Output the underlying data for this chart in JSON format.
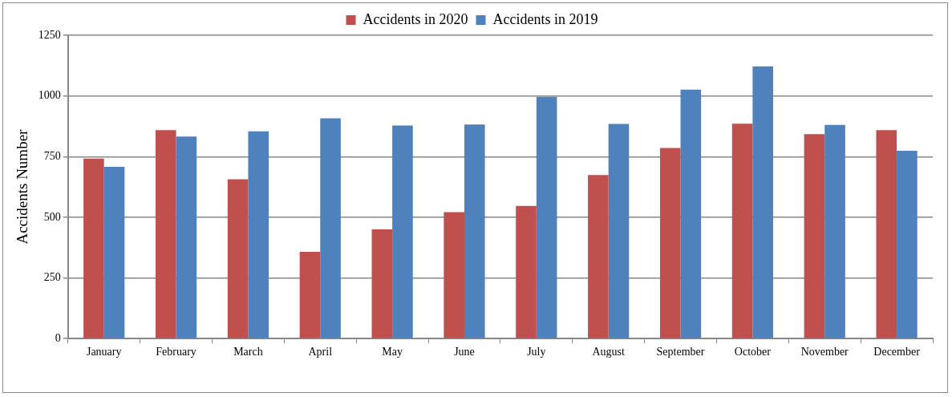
{
  "chart_data": {
    "type": "bar",
    "ylabel": "Accidents Number",
    "categories": [
      "January",
      "February",
      "March",
      "April",
      "May",
      "June",
      "July",
      "August",
      "September",
      "October",
      "November",
      "December"
    ],
    "series": [
      {
        "name": "Accidents in 2020",
        "color": "#c0504d",
        "values": [
          742,
          859,
          657,
          358,
          450,
          521,
          547,
          674,
          786,
          886,
          843,
          859
        ]
      },
      {
        "name": "Accidents in 2019",
        "color": "#4f81bd",
        "values": [
          708,
          833,
          854,
          908,
          878,
          882,
          996,
          885,
          1026,
          1122,
          881,
          774
        ]
      }
    ],
    "ylim": [
      0,
      1250
    ],
    "yticks": [
      0,
      250,
      500,
      750,
      1000,
      1250
    ],
    "grid": "y",
    "legend": "top"
  }
}
